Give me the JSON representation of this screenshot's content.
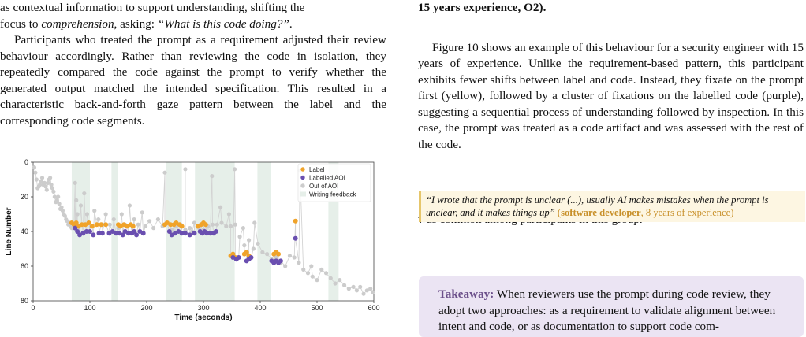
{
  "left_column": {
    "p1_line1": "as contextual information to support understanding, shifting the",
    "p1_line2_pre": "focus to ",
    "p1_line2_em": "comprehension",
    "p1_line2_mid": ", asking: ",
    "p1_line2_quote": "“What is this code doing?”",
    "p1_line2_post": ".",
    "p2": "Participants who treated the prompt as a requirement adjusted their review behaviour accordingly. Rather than reviewing the code in isolation, they repeatedly compared the code against the prompt to verify whether the generated output matched the intended specification. This resulted in a characteristic back-and-forth gaze pattern between the label and the corresponding code segments."
  },
  "right_column": {
    "top_bold": "15 years experience, O2).",
    "p1": "Figure 10 shows an example of this behaviour for a security engineer with 15 years of experience. Unlike the requirement-based pattern, this participant exhibits fewer shifts between label and code. Instead, they fixate on the prompt first (yellow), followed by a cluster of fixations on the labelled code (purple), suggesting a sequential process of understanding followed by inspection. In this case, the prompt was treated as a code artifact and was assessed with the rest of the code.",
    "quote_text": "“I wrote that the prompt is unclear (...), usually AI makes mistakes when the prompt is unclear, and it makes things up”",
    "quote_role": "software developer",
    "quote_exp": ", 8 years of experience)",
    "quote_open": "(",
    "p2": "While the number of passes through the file varied, this label-first strategy was common among participants in this group.",
    "takeaway_label": "Takeaway:",
    "takeaway_text": "When reviewers use the prompt during code review, they adopt two approaches: as a requirement to validate alignment between intent and code, or as documentation to support code com-"
  },
  "colors": {
    "label": "#f0a32a",
    "labelled_aoi": "#6a4fb0",
    "out_of_aoi": "#cccccc",
    "writing_band": "#e6efe9",
    "quote_bg": "#fdf6e2",
    "takeaway_bg": "#ebe4f3"
  },
  "chart_data": {
    "type": "scatter",
    "xlabel": "Time (seconds)",
    "ylabel": "Line Number",
    "xlim": [
      0,
      600
    ],
    "ylim": [
      80,
      0
    ],
    "x_ticks": [
      "0",
      "100",
      "200",
      "300",
      "400",
      "500",
      "600"
    ],
    "y_ticks": [
      "0",
      "20",
      "40",
      "60",
      "80"
    ],
    "legend": [
      "Label",
      "Labelled AOI",
      "Out of AOI",
      "Writing feedback"
    ],
    "legend_position": "top-right",
    "writing_feedback_intervals": [
      [
        68,
        100
      ],
      [
        138,
        150
      ],
      [
        234,
        262
      ],
      [
        285,
        355
      ],
      [
        395,
        418
      ],
      [
        520,
        538
      ]
    ],
    "series": [
      {
        "name": "Out of AOI",
        "x": [
          2,
          4,
          6,
          8,
          10,
          12,
          14,
          16,
          18,
          20,
          22,
          24,
          26,
          28,
          30,
          32,
          34,
          36,
          38,
          40,
          42,
          44,
          46,
          48,
          50,
          52,
          54,
          56,
          58,
          60,
          62,
          64,
          66,
          68,
          70,
          72,
          74,
          76,
          78,
          80,
          84,
          90,
          95,
          102,
          108,
          115,
          122,
          128,
          135,
          142,
          150,
          156,
          162,
          170,
          178,
          185,
          192,
          198,
          205,
          212,
          220,
          228,
          236,
          244,
          252,
          260,
          268,
          276,
          284,
          292,
          300,
          308,
          316,
          324,
          332,
          340,
          348,
          356,
          364,
          372,
          380,
          388,
          396,
          404,
          412,
          420,
          428,
          436,
          444,
          452,
          460,
          468,
          476,
          484,
          492,
          500,
          508,
          516,
          524,
          532,
          540,
          548,
          556,
          564,
          570,
          576,
          582,
          588,
          594,
          598,
          232,
          268,
          280,
          315,
          330,
          345,
          355,
          370,
          390,
          470,
          490
        ],
        "y": [
          3,
          6,
          10,
          15,
          14,
          13,
          11,
          9,
          13,
          12,
          14,
          16,
          12,
          10,
          9,
          13,
          15,
          17,
          20,
          23,
          22,
          20,
          24,
          27,
          26,
          28,
          30,
          31,
          33,
          34,
          36,
          35,
          37,
          38,
          36,
          37,
          12,
          22,
          30,
          38,
          25,
          18,
          30,
          37,
          28,
          33,
          36,
          30,
          36,
          33,
          38,
          30,
          36,
          25,
          33,
          36,
          29,
          37,
          34,
          38,
          33,
          37,
          35,
          39,
          37,
          36,
          39,
          38,
          35,
          38,
          39,
          37,
          36,
          36,
          35,
          37,
          37,
          36,
          43,
          48,
          45,
          50,
          47,
          52,
          53,
          56,
          55,
          58,
          60,
          54,
          55,
          58,
          62,
          64,
          66,
          68,
          62,
          64,
          67,
          70,
          68,
          71,
          73,
          72,
          74,
          72,
          76,
          74,
          73,
          75,
          6,
          4,
          40,
          8,
          26,
          30,
          4,
          38,
          35,
          5,
          60
        ]
      },
      {
        "name": "Label",
        "x": [
          68,
          72,
          76,
          80,
          86,
          92,
          98,
          104,
          112,
          120,
          128,
          150,
          154,
          160,
          166,
          172,
          176,
          232,
          236,
          242,
          248,
          252,
          258,
          262,
          290,
          296,
          300,
          304,
          348,
          352,
          356,
          372,
          376,
          380,
          424,
          428,
          432,
          462
        ],
        "y": [
          35,
          36,
          35,
          37,
          36,
          36,
          35,
          37,
          36,
          36,
          36,
          36,
          37,
          36,
          37,
          36,
          37,
          36,
          35,
          36,
          36,
          35,
          36,
          37,
          37,
          36,
          35,
          36,
          54,
          53,
          55,
          53,
          52,
          54,
          53,
          52,
          53,
          34
        ]
      },
      {
        "name": "Labelled AOI",
        "x": [
          74,
          78,
          82,
          88,
          94,
          100,
          106,
          116,
          122,
          134,
          140,
          146,
          152,
          158,
          162,
          168,
          174,
          178,
          182,
          188,
          194,
          240,
          244,
          250,
          256,
          262,
          268,
          276,
          284,
          294,
          298,
          302,
          306,
          312,
          318,
          322,
          352,
          358,
          362,
          376,
          380,
          384,
          420,
          424,
          428,
          432,
          436,
          462
        ],
        "y": [
          38,
          40,
          42,
          41,
          40,
          40,
          42,
          41,
          41,
          41,
          40,
          41,
          41,
          42,
          40,
          41,
          41,
          40,
          42,
          40,
          41,
          40,
          42,
          41,
          40,
          41,
          41,
          42,
          41,
          40,
          41,
          40,
          41,
          41,
          41,
          40,
          55,
          56,
          55,
          57,
          56,
          55,
          57,
          58,
          57,
          58,
          57,
          44
        ]
      }
    ]
  }
}
